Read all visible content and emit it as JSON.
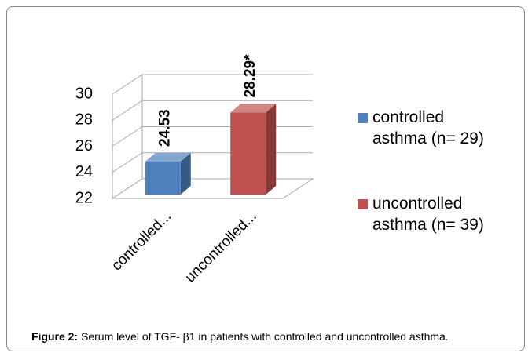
{
  "chart_data": {
    "type": "bar3d",
    "categories": [
      "controlled...",
      "uncontrolled..."
    ],
    "series": [
      {
        "name": "controlled asthma (n= 29)",
        "color": "#4f81bd",
        "values": [
          24.53,
          null
        ],
        "value_labels": [
          "24.53",
          null
        ]
      },
      {
        "name": "uncontrolled asthma (n= 39)",
        "color": "#c0504d",
        "values": [
          null,
          28.29
        ],
        "value_labels": [
          null,
          "28.29*"
        ]
      }
    ],
    "ylim": [
      22,
      30
    ],
    "yticks": [
      22,
      24,
      26,
      28,
      30
    ],
    "grid": true,
    "legend": "right"
  },
  "caption": {
    "label": "Figure 2:",
    "text": "Serum level of TGF- β1 in patients with controlled and uncontrolled asthma."
  }
}
